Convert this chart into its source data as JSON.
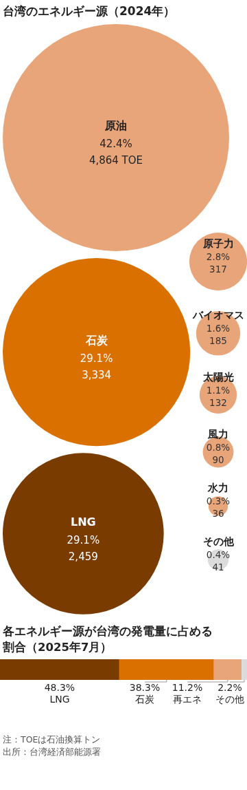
{
  "chart_data": [
    {
      "type": "other",
      "title": "台湾のエネルギー源（2024年）",
      "categories": [
        "原油",
        "石炭",
        "LNG",
        "原子力",
        "バイオマス",
        "太陽光",
        "風力",
        "水力",
        "その他"
      ],
      "values": [
        4864,
        3334,
        2459,
        317,
        185,
        132,
        90,
        36,
        41
      ],
      "value_labels": [
        "42.4%\n4,864 TOE",
        "29.1%\n3,334",
        "29.1%\n2,459",
        "2.8%\n317",
        "1.6%\n185",
        "1.1%\n132",
        "0.8%\n90",
        "0.3%\n36",
        "0.4%\n41"
      ],
      "colors": [
        "#e8a57a",
        "#d97000",
        "#7a3b00",
        "#e8a57a",
        "#e8a57a",
        "#e8a57a",
        "#e8a57a",
        "#e8a57a",
        "#dcdcdc"
      ]
    },
    {
      "type": "bar",
      "stacked": true,
      "orientation": "horizontal",
      "title": "各エネルギー源が台湾の発電量に占める割合（2025年7月）",
      "categories": [
        null
      ],
      "series": [
        {
          "name": "LNG",
          "color": "#7a3b00",
          "values": [
            48.3
          ],
          "value_labels": [
            "48.3%"
          ]
        },
        {
          "name": "石炭",
          "color": "#d97000",
          "values": [
            38.3
          ],
          "value_labels": [
            "38.3%"
          ]
        },
        {
          "name": "再エネ",
          "color": "#e8a57a",
          "values": [
            11.2
          ],
          "value_labels": [
            "11.2%"
          ]
        },
        {
          "name": "その他",
          "color": "#dcdcdc",
          "values": [
            2.2
          ],
          "value_labels": [
            "2.2%"
          ]
        }
      ],
      "annotations": [
        "注：TOEは石油換算トン",
        "出所：台湾経済部能源署"
      ]
    }
  ]
}
